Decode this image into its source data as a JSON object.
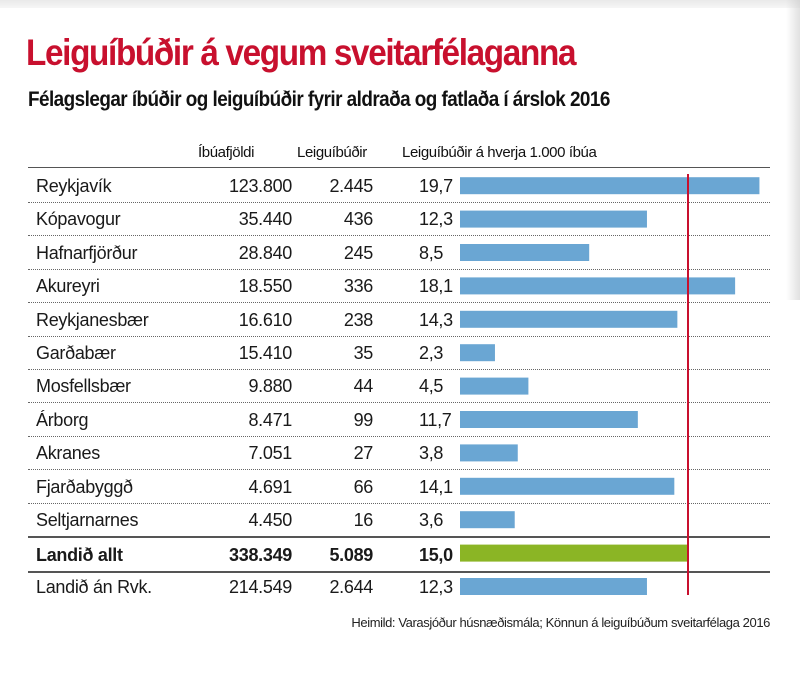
{
  "title": "Leiguíbúðir á vegum sveitarfélaganna",
  "subtitle": "Félagslegar íbúðir og leiguíbúðir fyrir aldraða og fatlaða í árslok 2016",
  "columns": {
    "population": "Íbúafjöldi",
    "units": "Leiguíbúðir",
    "rate": "Leiguíbúðir á hverja 1.000 íbúa"
  },
  "source": "Heimild: Varasjóður húsnæðismála; Könnun á leiguíbúðum sveitarfélaga 2016",
  "colors": {
    "title": "#c8102e",
    "bar": "#6aa6d3",
    "total_bar": "#8bb525",
    "reference_line": "#c8102e"
  },
  "chart_data": {
    "type": "bar",
    "title": "Leiguíbúðir á vegum sveitarfélaganna",
    "subtitle": "Félagslegar íbúðir og leiguíbúðir fyrir aldraða og fatlaða í árslok 2016",
    "categories": [
      "Reykjavík",
      "Kópavogur",
      "Hafnarfjörður",
      "Akureyri",
      "Reykjanesbær",
      "Garðabær",
      "Mosfellsbær",
      "Árborg",
      "Akranes",
      "Fjarðabyggð",
      "Seltjarnarnes",
      "Landið allt",
      "Landið án Rvk."
    ],
    "population_labels": [
      "123.800",
      "35.440",
      "28.840",
      "18.550",
      "16.610",
      "15.410",
      "9.880",
      "8.471",
      "7.051",
      "4.691",
      "4.450",
      "338.349",
      "214.549"
    ],
    "units_labels": [
      "2.445",
      "436",
      "245",
      "336",
      "238",
      "35",
      "44",
      "99",
      "27",
      "66",
      "16",
      "5.089",
      "2.644"
    ],
    "value_labels": [
      "19,7",
      "12,3",
      "8,5",
      "18,1",
      "14,3",
      "2,3",
      "4,5",
      "11,7",
      "3,8",
      "14,1",
      "3,6",
      "15,0",
      "12,3"
    ],
    "values": [
      19.7,
      12.3,
      8.5,
      18.1,
      14.3,
      2.3,
      4.5,
      11.7,
      3.8,
      14.1,
      3.6,
      15.0,
      12.3
    ],
    "highlight_index": 11,
    "reference_value": 15.0,
    "xlim": [
      0,
      20
    ]
  }
}
